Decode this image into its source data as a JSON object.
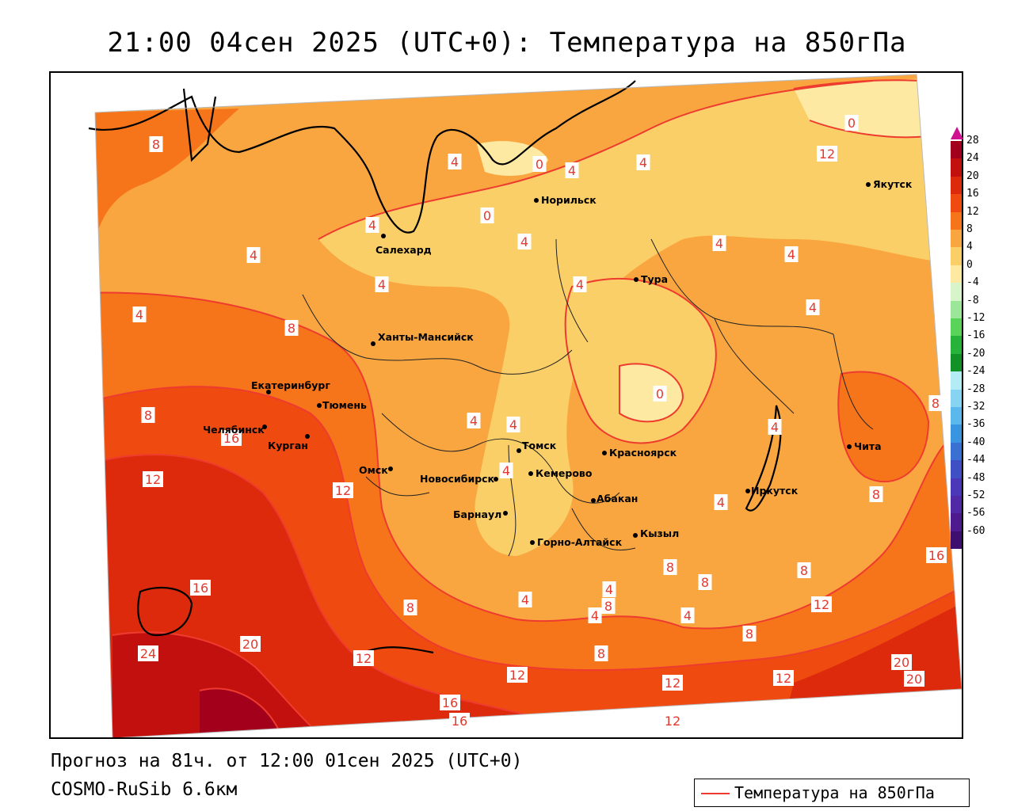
{
  "title": "21:00 04сен 2025 (UTC+0): Температура на 850гПа",
  "forecast_line": "Прогноз на 81ч. от 12:00 01сен 2025 (UTC+0)",
  "model_line": "COSMO-RuSib 6.6км",
  "legend": {
    "label": "Температура на 850гПа",
    "line_color": "#ee3b2f"
  },
  "colorbar": {
    "labels": [
      "28",
      "24",
      "20",
      "16",
      "12",
      "8",
      "4",
      "0",
      "-4",
      "-8",
      "-12",
      "-16",
      "-20",
      "-24",
      "-28",
      "-32",
      "-36",
      "-40",
      "-44",
      "-48",
      "-52",
      "-56",
      "-60"
    ],
    "colors": [
      "#a3001b",
      "#c2100f",
      "#dd2a0c",
      "#ef4a10",
      "#f7751a",
      "#f9a640",
      "#fbcf68",
      "#fde9a2",
      "#d8f5c9",
      "#9ce69a",
      "#5ad35a",
      "#27b33a",
      "#129127",
      "#b4ecf6",
      "#86d4f1",
      "#5ab8ec",
      "#3a95e0",
      "#3a70d2",
      "#3f4fc4",
      "#4a38b8",
      "#5128a6",
      "#4e1a8f",
      "#3d1070"
    ]
  },
  "cities": [
    {
      "name": "Якутск"
    },
    {
      "name": "Норильск"
    },
    {
      "name": "Салехард"
    },
    {
      "name": "Тура"
    },
    {
      "name": "Ханты-Мансийск"
    },
    {
      "name": "Екатеринбург"
    },
    {
      "name": "Тюмень"
    },
    {
      "name": "Челябинск"
    },
    {
      "name": "Курган"
    },
    {
      "name": "Омск"
    },
    {
      "name": "Томск"
    },
    {
      "name": "Красноярск"
    },
    {
      "name": "Новосибирск"
    },
    {
      "name": "Кемерово"
    },
    {
      "name": "Абакан"
    },
    {
      "name": "Барнаул"
    },
    {
      "name": "Горно-Алтайск"
    },
    {
      "name": "Кызыл"
    },
    {
      "name": "Иркутск"
    },
    {
      "name": "Чита"
    }
  ],
  "isoline_labels": [
    "0",
    "0",
    "0",
    "0",
    "4",
    "4",
    "4",
    "4",
    "4",
    "4",
    "4",
    "4",
    "4",
    "4",
    "4",
    "4",
    "4",
    "4",
    "4",
    "4",
    "4",
    "4",
    "4",
    "4",
    "4",
    "8",
    "8",
    "8",
    "8",
    "8",
    "8",
    "8",
    "8",
    "8",
    "8",
    "8",
    "8",
    "12",
    "12",
    "12",
    "12",
    "12",
    "12",
    "12",
    "12",
    "12",
    "16",
    "16",
    "16",
    "16",
    "16",
    "20",
    "20",
    "20",
    "24"
  ]
}
